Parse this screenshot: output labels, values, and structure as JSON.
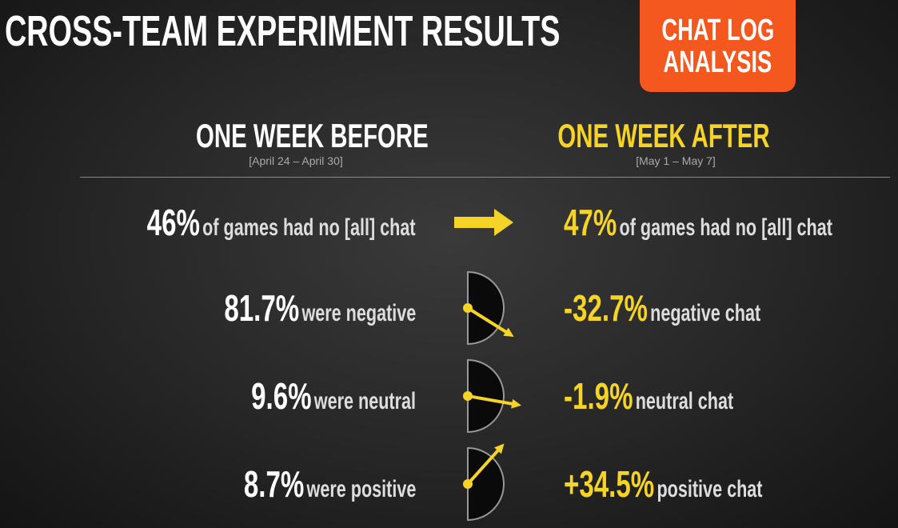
{
  "header": {
    "title": "CROSS-TEAM EXPERIMENT RESULTS",
    "badge": [
      "CHAT LOG",
      "ANALYSIS"
    ]
  },
  "columns": {
    "before": {
      "title": "ONE WEEK BEFORE",
      "dates": "[April 24 – April 30]"
    },
    "after": {
      "title": "ONE WEEK AFTER",
      "dates": "[May 1 – May 7]"
    }
  },
  "rows": [
    {
      "before_value": "46%",
      "before_text": "of games had no [all] chat",
      "after_value": "47%",
      "after_text": "of games had no [all] chat"
    },
    {
      "before_value": "81.7%",
      "before_text": "were negative",
      "after_value": "-32.7%",
      "after_text": "negative chat"
    },
    {
      "before_value": "9.6%",
      "before_text": "were neutral",
      "after_value": "-1.9%",
      "after_text": "neutral chat"
    },
    {
      "before_value": "8.7%",
      "before_text": "were positive",
      "after_value": "+34.5%",
      "after_text": "positive chat"
    }
  ]
}
